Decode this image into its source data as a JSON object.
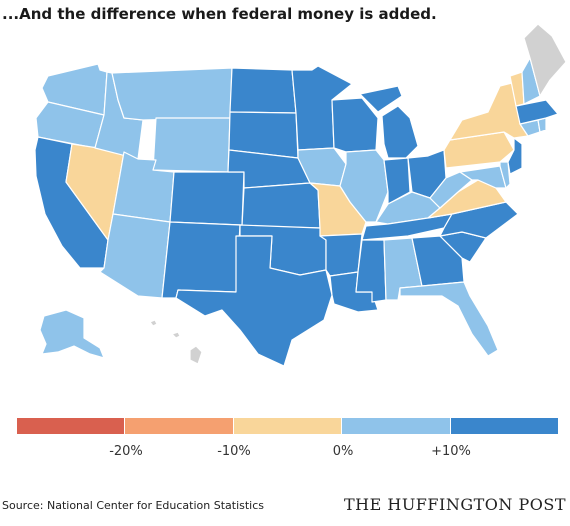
{
  "title": "...And the difference when federal money is added.",
  "colors": {
    "red": "#d9604f",
    "orange": "#f5a070",
    "tan": "#f9d69a",
    "light_blue": "#8fc3ea",
    "dark_blue": "#3a86cc",
    "gray": "#d1d1d1"
  },
  "legend": {
    "segments": [
      "red",
      "orange",
      "tan",
      "light_blue",
      "dark_blue"
    ],
    "labels": [
      "-20%",
      "-10%",
      "0%",
      "+10%"
    ]
  },
  "states": {
    "WA": "light_blue",
    "OR": "light_blue",
    "CA": "dark_blue",
    "NV": "tan",
    "ID": "light_blue",
    "MT": "light_blue",
    "WY": "light_blue",
    "UT": "light_blue",
    "AZ": "light_blue",
    "CO": "dark_blue",
    "NM": "dark_blue",
    "ND": "dark_blue",
    "SD": "dark_blue",
    "NE": "dark_blue",
    "KS": "dark_blue",
    "OK": "dark_blue",
    "TX": "dark_blue",
    "MN": "dark_blue",
    "IA": "light_blue",
    "MO": "tan",
    "AR": "dark_blue",
    "LA": "dark_blue",
    "WI": "dark_blue",
    "IL": "light_blue",
    "MI": "dark_blue",
    "IN": "dark_blue",
    "OH": "dark_blue",
    "KY": "light_blue",
    "TN": "dark_blue",
    "MS": "dark_blue",
    "AL": "light_blue",
    "GA": "dark_blue",
    "FL": "light_blue",
    "SC": "dark_blue",
    "NC": "dark_blue",
    "VA": "tan",
    "WV": "light_blue",
    "MD": "light_blue",
    "DE": "light_blue",
    "PA": "tan",
    "NY": "tan",
    "NJ": "dark_blue",
    "CT": "light_blue",
    "RI": "light_blue",
    "MA": "dark_blue",
    "VT": "tan",
    "NH": "light_blue",
    "ME": "gray",
    "AK": "light_blue",
    "HI": "gray"
  },
  "source": "Source: National Center for Education Statistics",
  "brand": "THE HUFFINGTON POST"
}
